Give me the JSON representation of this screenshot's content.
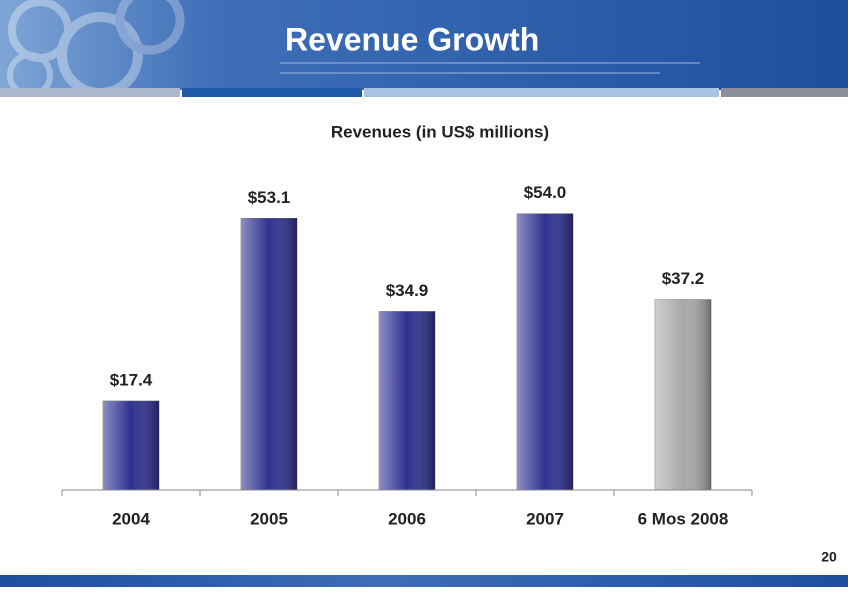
{
  "header": {
    "title": "Revenue Growth"
  },
  "chart_data": {
    "type": "bar",
    "title": "Revenues (in US$ millions)",
    "categories": [
      "2004",
      "2005",
      "2006",
      "2007",
      "6 Mos 2008"
    ],
    "values": [
      17.4,
      53.1,
      34.9,
      54.0,
      37.2
    ],
    "value_labels": [
      "$17.4",
      "$53.1",
      "$34.9",
      "$54.0",
      "$37.2"
    ],
    "colors": [
      "#2f3190",
      "#2f3190",
      "#2f3190",
      "#2f3190",
      "#a8a8a8"
    ],
    "ylim": [
      0,
      60
    ]
  },
  "footer": {
    "page_number": "20"
  }
}
